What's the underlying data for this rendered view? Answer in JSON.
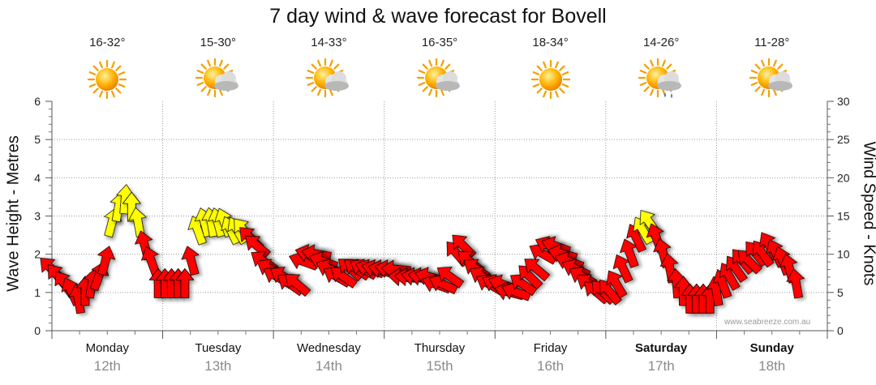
{
  "title": "7 day wind & wave forecast for Bovell",
  "watermark": "www.seabreeze.com.au",
  "colors": {
    "arrow_strong": "#ffff00",
    "arrow_normal": "#ff0000",
    "arrow_stroke": "#000000",
    "grid": "#999999"
  },
  "days": [
    {
      "name": "Monday",
      "date": "12th",
      "temp": "16-32°",
      "icon": "sun-icon",
      "bold": false
    },
    {
      "name": "Tuesday",
      "date": "13th",
      "temp": "15-30°",
      "icon": "sun-cloud-icon",
      "bold": false
    },
    {
      "name": "Wednesday",
      "date": "14th",
      "temp": "14-33°",
      "icon": "sun-cloud-icon",
      "bold": false
    },
    {
      "name": "Thursday",
      "date": "15th",
      "temp": "16-35°",
      "icon": "sun-cloud-icon",
      "bold": false
    },
    {
      "name": "Friday",
      "date": "16th",
      "temp": "18-34°",
      "icon": "sun-icon",
      "bold": false
    },
    {
      "name": "Saturday",
      "date": "17th",
      "temp": "14-26°",
      "icon": "sun-cloud-rain-icon",
      "bold": true
    },
    {
      "name": "Sunday",
      "date": "18th",
      "temp": "11-28°",
      "icon": "sun-cloud-icon",
      "bold": true
    }
  ],
  "chart_data": {
    "type": "line",
    "title": "7 day wind & wave forecast for Bovell",
    "y_left": {
      "label": "Wave Height - Metres",
      "ticks": [
        "0",
        "1",
        "2",
        "3",
        "4",
        "5",
        "6"
      ],
      "range": [
        0,
        6
      ]
    },
    "y_right": {
      "label": "Wind Speed - Knots",
      "ticks": [
        "0",
        "5",
        "10",
        "15",
        "20",
        "25",
        "30"
      ],
      "range": [
        0,
        30
      ]
    },
    "x": {
      "start_day": 0,
      "end_day": 7,
      "tick_labels": [
        "Monday",
        "Tuesday",
        "Wednesday",
        "Thursday",
        "Friday",
        "Saturday",
        "Sunday"
      ]
    },
    "grid": true,
    "series": [
      {
        "name": "Wind Speed - Knots",
        "marker": "direction-arrow",
        "points": [
          {
            "t": 0.0,
            "knots": 8,
            "dir": -45
          },
          {
            "t": 0.06,
            "knots": 7,
            "dir": -40
          },
          {
            "t": 0.12,
            "knots": 6,
            "dir": -35
          },
          {
            "t": 0.18,
            "knots": 5,
            "dir": -25
          },
          {
            "t": 0.24,
            "knots": 4,
            "dir": -10
          },
          {
            "t": 0.3,
            "knots": 5,
            "dir": 0
          },
          {
            "t": 0.36,
            "knots": 6,
            "dir": 10
          },
          {
            "t": 0.42,
            "knots": 7,
            "dir": 20
          },
          {
            "t": 0.48,
            "knots": 9,
            "dir": 15
          },
          {
            "t": 0.54,
            "knots": 14,
            "dir": 15
          },
          {
            "t": 0.6,
            "knots": 16,
            "dir": 10
          },
          {
            "t": 0.66,
            "knots": 17,
            "dir": 5
          },
          {
            "t": 0.72,
            "knots": 16,
            "dir": 0
          },
          {
            "t": 0.78,
            "knots": 14,
            "dir": -10
          },
          {
            "t": 0.84,
            "knots": 11,
            "dir": -15
          },
          {
            "t": 0.9,
            "knots": 9,
            "dir": -20
          },
          {
            "t": 0.96,
            "knots": 6,
            "dir": 0
          },
          {
            "t": 1.02,
            "knots": 6,
            "dir": 0
          },
          {
            "t": 1.08,
            "knots": 6,
            "dir": 0
          },
          {
            "t": 1.14,
            "knots": 6,
            "dir": 0
          },
          {
            "t": 1.2,
            "knots": 6,
            "dir": 0
          },
          {
            "t": 1.26,
            "knots": 9,
            "dir": -15
          },
          {
            "t": 1.32,
            "knots": 13,
            "dir": -20
          },
          {
            "t": 1.38,
            "knots": 14,
            "dir": -15
          },
          {
            "t": 1.44,
            "knots": 14,
            "dir": -10
          },
          {
            "t": 1.5,
            "knots": 14,
            "dir": -15
          },
          {
            "t": 1.56,
            "knots": 14,
            "dir": -20
          },
          {
            "t": 1.62,
            "knots": 13,
            "dir": -25
          },
          {
            "t": 1.68,
            "knots": 13,
            "dir": -30
          },
          {
            "t": 1.74,
            "knots": 13,
            "dir": -40
          },
          {
            "t": 1.8,
            "knots": 12,
            "dir": -45
          },
          {
            "t": 1.86,
            "knots": 11,
            "dir": -50
          },
          {
            "t": 1.92,
            "knots": 9,
            "dir": -55
          },
          {
            "t": 1.98,
            "knots": 8,
            "dir": -60
          },
          {
            "t": 2.04,
            "knots": 7,
            "dir": -60
          },
          {
            "t": 2.1,
            "knots": 7,
            "dir": -60
          },
          {
            "t": 2.16,
            "knots": 6,
            "dir": -55
          },
          {
            "t": 2.22,
            "knots": 6,
            "dir": -50
          },
          {
            "t": 2.28,
            "knots": 9,
            "dir": -70
          },
          {
            "t": 2.34,
            "knots": 10,
            "dir": -75
          },
          {
            "t": 2.4,
            "knots": 10,
            "dir": -80
          },
          {
            "t": 2.46,
            "knots": 9,
            "dir": -70
          },
          {
            "t": 2.52,
            "knots": 8,
            "dir": -65
          },
          {
            "t": 2.58,
            "knots": 7,
            "dir": -60
          },
          {
            "t": 2.64,
            "knots": 7,
            "dir": -55
          },
          {
            "t": 2.7,
            "knots": 8,
            "dir": -50
          },
          {
            "t": 2.76,
            "knots": 8,
            "dir": -55
          },
          {
            "t": 2.82,
            "knots": 8,
            "dir": -60
          },
          {
            "t": 2.88,
            "knots": 8,
            "dir": -70
          },
          {
            "t": 2.94,
            "knots": 8,
            "dir": -75
          },
          {
            "t": 3.0,
            "knots": 8,
            "dir": -80
          },
          {
            "t": 3.06,
            "knots": 8,
            "dir": -80
          },
          {
            "t": 3.12,
            "knots": 8,
            "dir": -85
          },
          {
            "t": 3.18,
            "knots": 7,
            "dir": -85
          },
          {
            "t": 3.24,
            "knots": 7,
            "dir": -85
          },
          {
            "t": 3.3,
            "knots": 7,
            "dir": -80
          },
          {
            "t": 3.36,
            "knots": 7,
            "dir": -80
          },
          {
            "t": 3.42,
            "knots": 7,
            "dir": -75
          },
          {
            "t": 3.48,
            "knots": 6,
            "dir": -70
          },
          {
            "t": 3.54,
            "knots": 6,
            "dir": -65
          },
          {
            "t": 3.6,
            "knots": 7,
            "dir": -55
          },
          {
            "t": 3.66,
            "knots": 10,
            "dir": -40
          },
          {
            "t": 3.72,
            "knots": 11,
            "dir": -45
          },
          {
            "t": 3.78,
            "knots": 9,
            "dir": -50
          },
          {
            "t": 3.84,
            "knots": 8,
            "dir": -55
          },
          {
            "t": 3.9,
            "knots": 7,
            "dir": -60
          },
          {
            "t": 3.96,
            "knots": 6,
            "dir": -60
          },
          {
            "t": 4.02,
            "knots": 6,
            "dir": -65
          },
          {
            "t": 4.08,
            "knots": 6,
            "dir": -70
          },
          {
            "t": 4.14,
            "knots": 5,
            "dir": -75
          },
          {
            "t": 4.2,
            "knots": 5,
            "dir": -70
          },
          {
            "t": 4.26,
            "knots": 6,
            "dir": -55
          },
          {
            "t": 4.32,
            "knots": 7,
            "dir": -45
          },
          {
            "t": 4.38,
            "knots": 8,
            "dir": -50
          },
          {
            "t": 4.44,
            "knots": 10,
            "dir": -60
          },
          {
            "t": 4.5,
            "knots": 11,
            "dir": -65
          },
          {
            "t": 4.56,
            "knots": 11,
            "dir": -70
          },
          {
            "t": 4.62,
            "knots": 10,
            "dir": -75
          },
          {
            "t": 4.68,
            "knots": 9,
            "dir": -70
          },
          {
            "t": 4.74,
            "knots": 8,
            "dir": -65
          },
          {
            "t": 4.8,
            "knots": 7,
            "dir": -60
          },
          {
            "t": 4.86,
            "knots": 6,
            "dir": -55
          },
          {
            "t": 4.92,
            "knots": 5,
            "dir": -50
          },
          {
            "t": 4.98,
            "knots": 5,
            "dir": -45
          },
          {
            "t": 5.04,
            "knots": 5,
            "dir": -40
          },
          {
            "t": 5.1,
            "knots": 6,
            "dir": -30
          },
          {
            "t": 5.16,
            "knots": 8,
            "dir": -25
          },
          {
            "t": 5.22,
            "knots": 10,
            "dir": -20
          },
          {
            "t": 5.28,
            "knots": 12,
            "dir": -25
          },
          {
            "t": 5.34,
            "knots": 13,
            "dir": -30
          },
          {
            "t": 5.4,
            "knots": 14,
            "dir": -35
          },
          {
            "t": 5.46,
            "knots": 12,
            "dir": -20
          },
          {
            "t": 5.52,
            "knots": 10,
            "dir": -15
          },
          {
            "t": 5.58,
            "knots": 8,
            "dir": -10
          },
          {
            "t": 5.64,
            "knots": 6,
            "dir": -5
          },
          {
            "t": 5.7,
            "knots": 5,
            "dir": 0
          },
          {
            "t": 5.76,
            "knots": 4,
            "dir": 0
          },
          {
            "t": 5.82,
            "knots": 4,
            "dir": 0
          },
          {
            "t": 5.88,
            "knots": 4,
            "dir": 0
          },
          {
            "t": 5.94,
            "knots": 4,
            "dir": 0
          },
          {
            "t": 6.0,
            "knots": 5,
            "dir": -10
          },
          {
            "t": 6.06,
            "knots": 6,
            "dir": -20
          },
          {
            "t": 6.12,
            "knots": 7,
            "dir": -30
          },
          {
            "t": 6.18,
            "knots": 8,
            "dir": -35
          },
          {
            "t": 6.24,
            "knots": 9,
            "dir": -40
          },
          {
            "t": 6.3,
            "knots": 9,
            "dir": -45
          },
          {
            "t": 6.36,
            "knots": 10,
            "dir": -40
          },
          {
            "t": 6.42,
            "knots": 10,
            "dir": -35
          },
          {
            "t": 6.48,
            "knots": 11,
            "dir": -30
          },
          {
            "t": 6.54,
            "knots": 10,
            "dir": -25
          },
          {
            "t": 6.6,
            "knots": 9,
            "dir": -20
          },
          {
            "t": 6.66,
            "knots": 8,
            "dir": -15
          },
          {
            "t": 6.72,
            "knots": 6,
            "dir": -10
          }
        ]
      }
    ]
  }
}
